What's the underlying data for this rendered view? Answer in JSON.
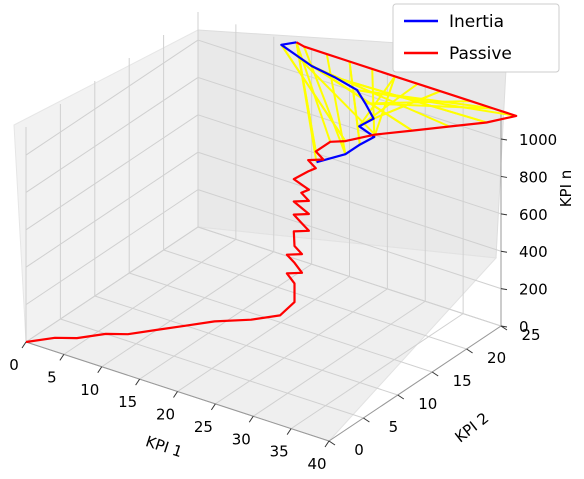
{
  "chart_data": {
    "type": "line3d",
    "title": "",
    "xlabel": "KPI 1",
    "ylabel": "KPI 2",
    "zlabel": "KPI n",
    "xlim": [
      0,
      40
    ],
    "ylim": [
      0,
      25
    ],
    "zlim": [
      0,
      1150
    ],
    "xticks": [
      "0",
      "5",
      "10",
      "15",
      "20",
      "25",
      "30",
      "35",
      "40"
    ],
    "yticks": [
      "0",
      "5",
      "10",
      "15",
      "20",
      "25"
    ],
    "zticks": [
      "0",
      "200",
      "400",
      "600",
      "800",
      "1000"
    ],
    "grid": true,
    "legend_position": "top-right",
    "series": [
      {
        "name": "Inertia",
        "color": "#0000ff",
        "points": [
          [
            13,
            25,
            1160
          ],
          [
            11,
            25,
            1120
          ],
          [
            13,
            25,
            1090
          ],
          [
            15,
            25,
            1060
          ],
          [
            18,
            25,
            1040
          ],
          [
            21,
            25,
            1010
          ],
          [
            23,
            24,
            990
          ],
          [
            25,
            23,
            960
          ],
          [
            24,
            22,
            930
          ],
          [
            26,
            22,
            900
          ],
          [
            25,
            21,
            870
          ],
          [
            24,
            20,
            830
          ],
          [
            22,
            18,
            810
          ]
        ]
      },
      {
        "name": "Passive",
        "color": "#ff0000",
        "points": [
          [
            0,
            0,
            0
          ],
          [
            2,
            2,
            0
          ],
          [
            4,
            3,
            0
          ],
          [
            6,
            5,
            0
          ],
          [
            8,
            6,
            0
          ],
          [
            10,
            8,
            0
          ],
          [
            12,
            10,
            0
          ],
          [
            14,
            12,
            0
          ],
          [
            17,
            14,
            0
          ],
          [
            19,
            16,
            0
          ],
          [
            20,
            17,
            60
          ],
          [
            20,
            17,
            110
          ],
          [
            20,
            17,
            160
          ],
          [
            19,
            17,
            200
          ],
          [
            21,
            17,
            230
          ],
          [
            20,
            17,
            270
          ],
          [
            19,
            17,
            300
          ],
          [
            21,
            17,
            330
          ],
          [
            20,
            17,
            360
          ],
          [
            19,
            18,
            400
          ],
          [
            21,
            18,
            430
          ],
          [
            20,
            18,
            460
          ],
          [
            19,
            18,
            490
          ],
          [
            21,
            18,
            520
          ],
          [
            19,
            18,
            560
          ],
          [
            21,
            18,
            590
          ],
          [
            20,
            18,
            620
          ],
          [
            21,
            18,
            650
          ],
          [
            19,
            18,
            680
          ],
          [
            20,
            19,
            710
          ],
          [
            21,
            19,
            740
          ],
          [
            20,
            19,
            770
          ],
          [
            22,
            19,
            800
          ],
          [
            21,
            19,
            830
          ],
          [
            22,
            20,
            870
          ],
          [
            24,
            20,
            900
          ],
          [
            27,
            21,
            950
          ],
          [
            31,
            22,
            1000
          ],
          [
            35,
            23,
            1050
          ],
          [
            39,
            24,
            1100
          ],
          [
            42,
            25,
            1150
          ],
          [
            39,
            25,
            1150
          ],
          [
            36,
            25,
            1150
          ],
          [
            32,
            25,
            1150
          ],
          [
            29,
            25,
            1150
          ],
          [
            26,
            25,
            1150
          ],
          [
            23,
            25,
            1150
          ],
          [
            20,
            25,
            1150
          ],
          [
            17,
            25,
            1150
          ],
          [
            14,
            25,
            1150
          ],
          [
            13,
            25,
            1160
          ]
        ]
      }
    ],
    "fill": {
      "color": "#ffff00",
      "segments": 26,
      "comment_ref": "yellow connecting lines between Inertia and Passive paths"
    },
    "legend": [
      {
        "label": "Inertia",
        "color": "#0000ff"
      },
      {
        "label": "Passive",
        "color": "#ff0000"
      }
    ]
  }
}
